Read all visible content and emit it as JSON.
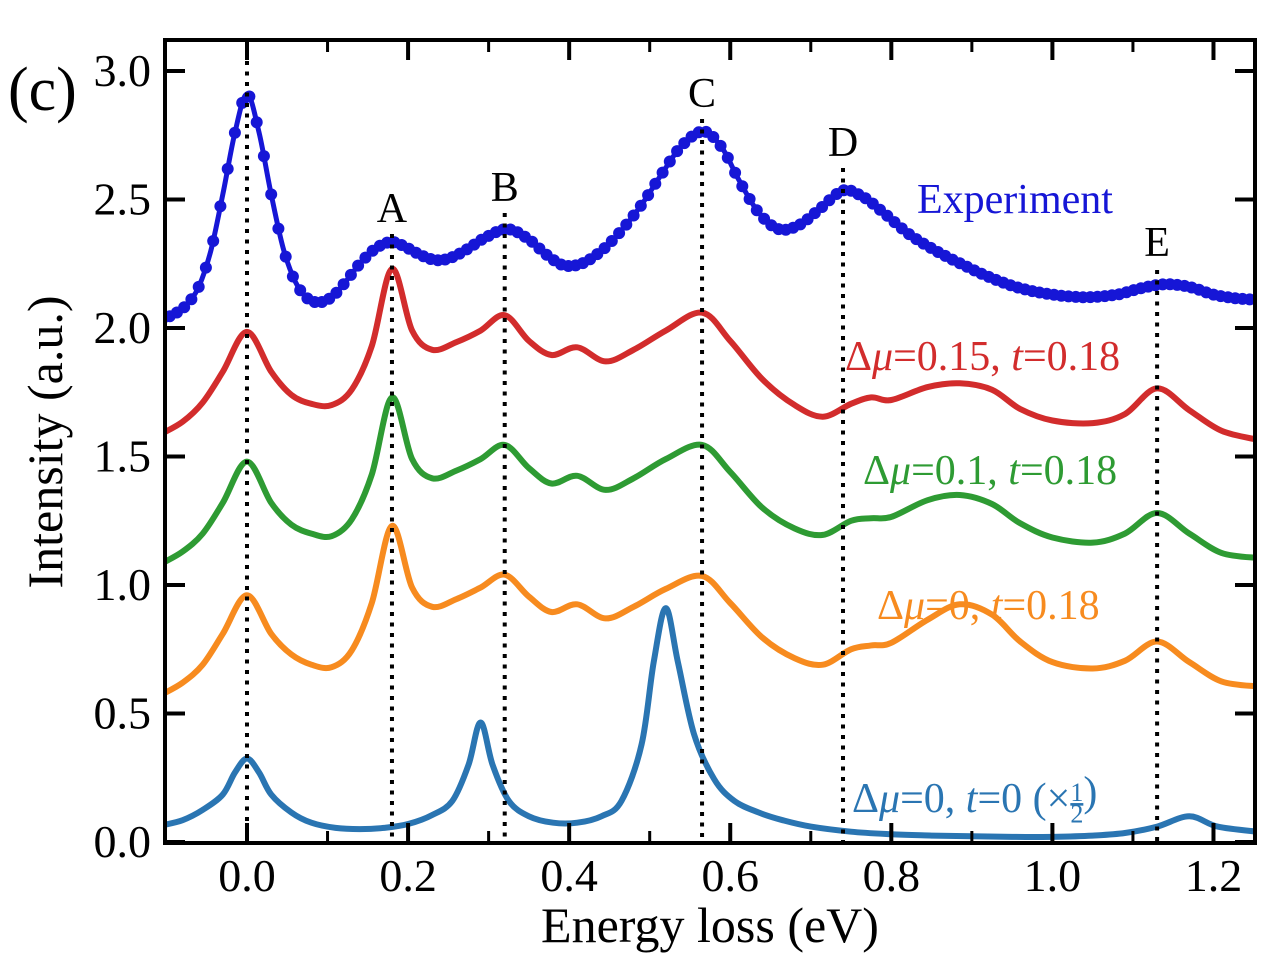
{
  "panel_label": "(c)",
  "axes": {
    "x": {
      "label": "Energy loss (eV)",
      "tick_values": [
        0.0,
        0.2,
        0.4,
        0.6,
        0.8,
        1.0,
        1.2
      ],
      "tick_labels": [
        "0.0",
        "0.2",
        "0.4",
        "0.6",
        "0.8",
        "1.0",
        "1.2"
      ],
      "minor_tick_values": [
        0.1,
        0.3,
        0.5,
        0.7,
        0.9,
        1.1
      ],
      "range": [
        -0.102,
        1.252
      ]
    },
    "y": {
      "label": "Intensity (a.u.)",
      "tick_values": [
        0.0,
        0.5,
        1.0,
        1.5,
        2.0,
        2.5,
        3.0
      ],
      "tick_labels": [
        "0.0",
        "0.5",
        "1.0",
        "1.5",
        "2.0",
        "2.5",
        "3.0"
      ],
      "range": [
        0,
        3.12
      ]
    }
  },
  "chart_data": {
    "type": "line",
    "title": "",
    "xlabel": "Energy loss (eV)",
    "ylabel": "Intensity (a.u.)",
    "xlim": [
      -0.102,
      1.252
    ],
    "ylim": [
      0,
      3.12
    ],
    "grid": false,
    "legend_position": "inline-right",
    "peak_guides": [
      {
        "label": "",
        "x": 0.0
      },
      {
        "label": "A",
        "x": 0.18
      },
      {
        "label": "B",
        "x": 0.32
      },
      {
        "label": "C",
        "x": 0.565
      },
      {
        "label": "D",
        "x": 0.74
      },
      {
        "label": "E",
        "x": 1.13
      }
    ],
    "guide_line_style": "black dotted vertical",
    "series": [
      {
        "name": "Experiment",
        "legend_text": "Experiment",
        "legend_parts": [
          {
            "text": "Experiment"
          }
        ],
        "color": "#1616d6",
        "marker": "circle",
        "x": [
          -0.105,
          -0.09,
          -0.075,
          -0.06,
          -0.045,
          -0.03,
          -0.015,
          0.0,
          0.015,
          0.03,
          0.045,
          0.06,
          0.075,
          0.09,
          0.105,
          0.12,
          0.14,
          0.16,
          0.18,
          0.2,
          0.215,
          0.233,
          0.25,
          0.27,
          0.295,
          0.323,
          0.35,
          0.37,
          0.392,
          0.415,
          0.44,
          0.465,
          0.49,
          0.515,
          0.54,
          0.567,
          0.59,
          0.61,
          0.635,
          0.66,
          0.685,
          0.71,
          0.74,
          0.765,
          0.79,
          0.82,
          0.85,
          0.88,
          0.92,
          0.96,
          1.0,
          1.04,
          1.08,
          1.11,
          1.14,
          1.17,
          1.2,
          1.23,
          1.255
        ],
        "y": [
          2.035,
          2.055,
          2.09,
          2.16,
          2.3,
          2.52,
          2.76,
          2.91,
          2.76,
          2.52,
          2.31,
          2.18,
          2.115,
          2.1,
          2.12,
          2.17,
          2.25,
          2.31,
          2.335,
          2.31,
          2.285,
          2.265,
          2.27,
          2.3,
          2.35,
          2.385,
          2.345,
          2.29,
          2.245,
          2.25,
          2.3,
          2.38,
          2.48,
          2.6,
          2.71,
          2.765,
          2.7,
          2.58,
          2.45,
          2.385,
          2.4,
          2.46,
          2.535,
          2.51,
          2.45,
          2.37,
          2.31,
          2.26,
          2.2,
          2.155,
          2.13,
          2.12,
          2.13,
          2.155,
          2.17,
          2.16,
          2.13,
          2.115,
          2.11
        ]
      },
      {
        "name": "dmu_0.15_t_0.18",
        "legend_text": "Δμ=0.15, t=0.18",
        "legend_parts": [
          {
            "text": "Δ"
          },
          {
            "text": "μ",
            "italic": true
          },
          {
            "text": "=0.15, "
          },
          {
            "text": "t",
            "italic": true
          },
          {
            "text": "=0.18"
          }
        ],
        "color": "#d22c2c",
        "marker": "none",
        "x": [
          -0.105,
          -0.08,
          -0.055,
          -0.03,
          0.0,
          0.03,
          0.055,
          0.08,
          0.105,
          0.13,
          0.155,
          0.18,
          0.205,
          0.23,
          0.26,
          0.29,
          0.32,
          0.35,
          0.378,
          0.41,
          0.445,
          0.48,
          0.52,
          0.565,
          0.6,
          0.64,
          0.68,
          0.715,
          0.75,
          0.775,
          0.8,
          0.845,
          0.885,
          0.925,
          0.96,
          1.0,
          1.05,
          1.09,
          1.13,
          1.17,
          1.21,
          1.255
        ],
        "y": [
          1.59,
          1.635,
          1.71,
          1.83,
          1.985,
          1.83,
          1.74,
          1.705,
          1.7,
          1.76,
          1.93,
          2.23,
          1.99,
          1.915,
          1.945,
          1.99,
          2.05,
          1.95,
          1.895,
          1.925,
          1.87,
          1.915,
          1.99,
          2.06,
          1.95,
          1.8,
          1.7,
          1.655,
          1.705,
          1.73,
          1.72,
          1.77,
          1.785,
          1.76,
          1.685,
          1.64,
          1.63,
          1.665,
          1.765,
          1.68,
          1.6,
          1.565
        ]
      },
      {
        "name": "dmu_0.1_t_0.18",
        "legend_text": "Δμ=0.1, t=0.18",
        "legend_parts": [
          {
            "text": "Δ"
          },
          {
            "text": "μ",
            "italic": true
          },
          {
            "text": "=0.1, "
          },
          {
            "text": "t",
            "italic": true
          },
          {
            "text": "=0.18"
          }
        ],
        "color": "#2e9b33",
        "marker": "none",
        "x": [
          -0.105,
          -0.08,
          -0.055,
          -0.03,
          0.0,
          0.03,
          0.055,
          0.08,
          0.105,
          0.13,
          0.155,
          0.18,
          0.205,
          0.23,
          0.26,
          0.29,
          0.32,
          0.35,
          0.378,
          0.41,
          0.445,
          0.48,
          0.52,
          0.565,
          0.6,
          0.64,
          0.68,
          0.715,
          0.75,
          0.775,
          0.8,
          0.845,
          0.885,
          0.925,
          0.96,
          1.0,
          1.05,
          1.09,
          1.13,
          1.17,
          1.21,
          1.255
        ],
        "y": [
          1.085,
          1.13,
          1.2,
          1.32,
          1.48,
          1.32,
          1.235,
          1.2,
          1.19,
          1.255,
          1.43,
          1.73,
          1.49,
          1.415,
          1.445,
          1.49,
          1.545,
          1.455,
          1.395,
          1.425,
          1.37,
          1.415,
          1.49,
          1.545,
          1.44,
          1.3,
          1.22,
          1.195,
          1.25,
          1.26,
          1.265,
          1.33,
          1.35,
          1.315,
          1.24,
          1.185,
          1.165,
          1.2,
          1.28,
          1.2,
          1.125,
          1.105
        ]
      },
      {
        "name": "dmu_0_t_0.18",
        "legend_text": "Δμ=0, t=0.18",
        "legend_parts": [
          {
            "text": "Δ"
          },
          {
            "text": "μ",
            "italic": true
          },
          {
            "text": "=0, "
          },
          {
            "text": "t",
            "italic": true
          },
          {
            "text": "=0.18"
          }
        ],
        "color": "#f78b1f",
        "marker": "none",
        "x": [
          -0.105,
          -0.08,
          -0.055,
          -0.03,
          0.0,
          0.03,
          0.055,
          0.08,
          0.105,
          0.13,
          0.155,
          0.18,
          0.205,
          0.23,
          0.26,
          0.29,
          0.32,
          0.35,
          0.378,
          0.41,
          0.445,
          0.48,
          0.52,
          0.565,
          0.6,
          0.64,
          0.68,
          0.715,
          0.75,
          0.775,
          0.8,
          0.845,
          0.885,
          0.925,
          0.96,
          1.0,
          1.05,
          1.09,
          1.13,
          1.17,
          1.21,
          1.255
        ],
        "y": [
          0.575,
          0.62,
          0.69,
          0.81,
          0.96,
          0.81,
          0.73,
          0.69,
          0.68,
          0.745,
          0.93,
          1.23,
          0.99,
          0.915,
          0.945,
          0.99,
          1.04,
          0.955,
          0.895,
          0.925,
          0.87,
          0.915,
          0.985,
          1.035,
          0.93,
          0.795,
          0.715,
          0.69,
          0.75,
          0.765,
          0.775,
          0.865,
          0.925,
          0.885,
          0.78,
          0.7,
          0.675,
          0.705,
          0.78,
          0.7,
          0.625,
          0.605
        ]
      },
      {
        "name": "dmu_0_t_0_half",
        "legend_text": "Δμ=0, t=0 (×1/2)",
        "legend_parts": [
          {
            "text": "Δ"
          },
          {
            "text": "μ",
            "italic": true
          },
          {
            "text": "=0, "
          },
          {
            "text": "t",
            "italic": true
          },
          {
            "text": "=0 (×"
          },
          {
            "text": "1",
            "frac": "num"
          },
          {
            "text": "2",
            "frac": "den"
          },
          {
            "text": ")"
          }
        ],
        "color": "#2a75b2",
        "marker": "none",
        "x": [
          -0.105,
          -0.08,
          -0.055,
          -0.03,
          -0.015,
          0.0,
          0.015,
          0.03,
          0.055,
          0.08,
          0.11,
          0.14,
          0.17,
          0.2,
          0.23,
          0.255,
          0.275,
          0.29,
          0.305,
          0.325,
          0.35,
          0.38,
          0.41,
          0.44,
          0.465,
          0.49,
          0.505,
          0.52,
          0.535,
          0.555,
          0.58,
          0.605,
          0.635,
          0.665,
          0.7,
          0.75,
          0.8,
          0.85,
          0.9,
          0.95,
          1.0,
          1.05,
          1.09,
          1.13,
          1.17,
          1.205,
          1.255
        ],
        "y": [
          0.065,
          0.085,
          0.125,
          0.185,
          0.27,
          0.325,
          0.27,
          0.185,
          0.115,
          0.075,
          0.055,
          0.05,
          0.055,
          0.07,
          0.105,
          0.16,
          0.3,
          0.465,
          0.3,
          0.16,
          0.1,
          0.075,
          0.075,
          0.1,
          0.16,
          0.38,
          0.7,
          0.91,
          0.7,
          0.42,
          0.245,
          0.16,
          0.115,
          0.085,
          0.06,
          0.04,
          0.03,
          0.025,
          0.022,
          0.02,
          0.02,
          0.025,
          0.035,
          0.06,
          0.1,
          0.06,
          0.04
        ]
      }
    ]
  }
}
